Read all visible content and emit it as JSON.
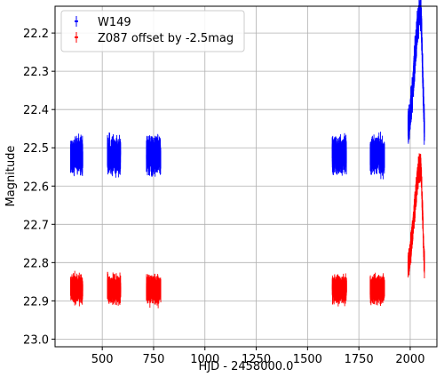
{
  "chart_data": {
    "type": "scatter",
    "title": "",
    "xlabel": "HJD - 2458000.0",
    "ylabel": "Magnitude",
    "xlim": [
      270,
      2130
    ],
    "ylim": [
      23.02,
      22.13
    ],
    "y_inverted": true,
    "grid": true,
    "legend_position": "top-left",
    "xticks": [
      500,
      750,
      1000,
      1250,
      1500,
      1750,
      2000
    ],
    "yticks": [
      22.2,
      22.3,
      22.4,
      22.5,
      22.6,
      22.7,
      22.8,
      22.9,
      23.0
    ],
    "xtick_labels": [
      "500",
      "750",
      "1000",
      "1250",
      "1500",
      "1750",
      "2000"
    ],
    "ytick_labels": [
      "22.2",
      "22.3",
      "22.4",
      "22.5",
      "22.6",
      "22.7",
      "22.8",
      "22.9",
      "23.0"
    ],
    "series": [
      {
        "name": "W149",
        "color": "#0000ff",
        "marker": "errorbar",
        "seasons": [
          {
            "x": [
              345,
              405
            ],
            "mag": 22.52,
            "scatter": 0.045
          },
          {
            "x": [
              525,
              590
            ],
            "mag": 22.52,
            "scatter": 0.045
          },
          {
            "x": [
              715,
              785
            ],
            "mag": 22.52,
            "scatter": 0.045
          },
          {
            "x": [
              1620,
              1690
            ],
            "mag": 22.52,
            "scatter": 0.045
          },
          {
            "x": [
              1805,
              1875
            ],
            "mag": 22.52,
            "scatter": 0.045
          },
          {
            "x": [
              1990,
              2070
            ],
            "mag": 22.5,
            "scatter": 0.045
          }
        ],
        "peak": {
          "t0": 2050,
          "peak_mag": 22.17,
          "base_mag": 22.52,
          "rise_width": 30,
          "fall_width": 10
        }
      },
      {
        "name": "Z087 offset by -2.5mag",
        "color": "#ff0000",
        "marker": "errorbar",
        "seasons": [
          {
            "x": [
              345,
              405
            ],
            "mag": 22.87,
            "scatter": 0.035
          },
          {
            "x": [
              525,
              590
            ],
            "mag": 22.87,
            "scatter": 0.035
          },
          {
            "x": [
              715,
              785
            ],
            "mag": 22.87,
            "scatter": 0.035
          },
          {
            "x": [
              1620,
              1690
            ],
            "mag": 22.87,
            "scatter": 0.035
          },
          {
            "x": [
              1805,
              1875
            ],
            "mag": 22.87,
            "scatter": 0.035
          },
          {
            "x": [
              1990,
              2070
            ],
            "mag": 22.85,
            "scatter": 0.035
          }
        ],
        "peak": {
          "t0": 2050,
          "peak_mag": 22.57,
          "base_mag": 22.87,
          "rise_width": 30,
          "fall_width": 10
        }
      }
    ]
  }
}
